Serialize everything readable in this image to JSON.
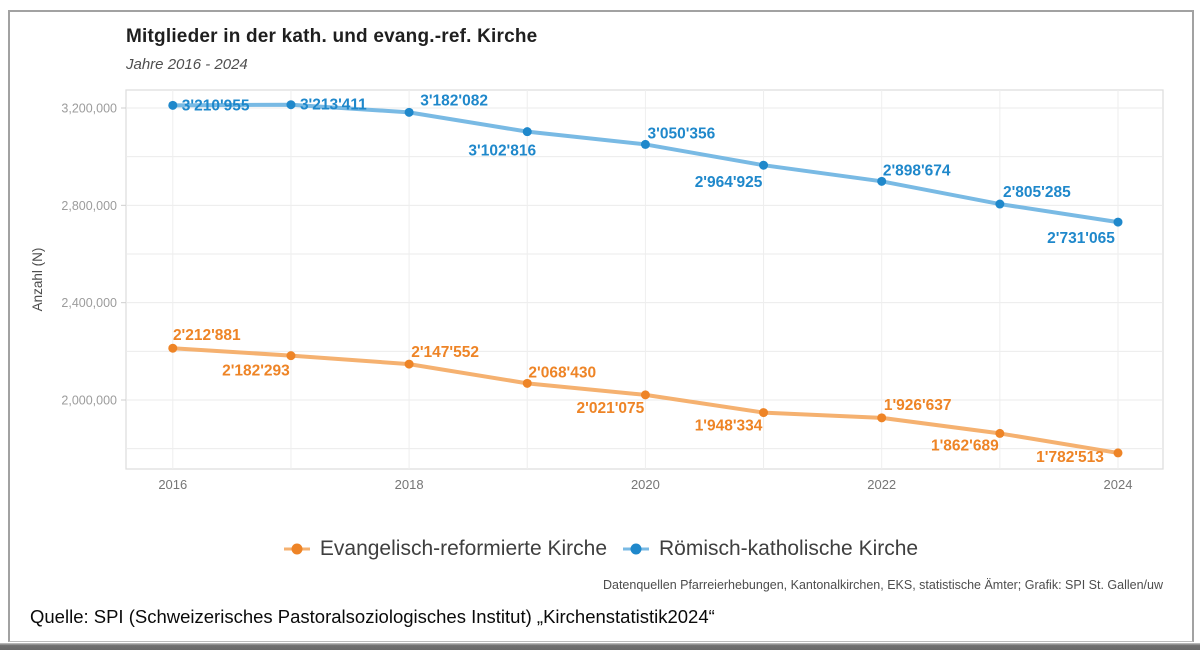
{
  "header": {
    "title": "Mitglieder in der kath. und evang.-ref. Kirche",
    "subtitle": "Jahre 2016 - 2024"
  },
  "chart_data": {
    "type": "line",
    "x": [
      2016,
      2017,
      2018,
      2019,
      2020,
      2021,
      2022,
      2023,
      2024
    ],
    "x_ticks": [
      2016,
      2018,
      2020,
      2022,
      2024
    ],
    "x_tick_labels": [
      "2016",
      "2018",
      "2020",
      "2022",
      "2024"
    ],
    "ylabel": "Anzahl (N)",
    "ylim": [
      1716000,
      3274000
    ],
    "grid": true,
    "legend_position": "bottom-center",
    "y_gridlines": [
      1800000,
      2000000,
      2200000,
      2400000,
      2600000,
      2800000,
      3000000,
      3200000
    ],
    "y_ticks": [
      {
        "value": 2000000,
        "label": "2,000,000"
      },
      {
        "value": 2400000,
        "label": "2,400,000"
      },
      {
        "value": 2800000,
        "label": "2,800,000"
      },
      {
        "value": 3200000,
        "label": "3,200,000"
      }
    ],
    "series": [
      {
        "id": "evangelisch",
        "name": "Evangelisch-reformierte Kirche",
        "color_line": "#f5b170",
        "color_point": "#ee8426",
        "color_label": "#ee8426",
        "values": [
          2212881,
          2182293,
          2147552,
          2068430,
          2021075,
          1948334,
          1926637,
          1862689,
          1782513
        ],
        "labels": [
          "2'212'881",
          "2'182'293",
          "2'147'552",
          "2'068'430",
          "2'021'075",
          "1'948'334",
          "1'926'637",
          "1'862'689",
          "1'782'513"
        ],
        "label_offsets": [
          [
            34,
            -8,
            "m"
          ],
          [
            -35,
            20,
            "m"
          ],
          [
            36,
            -7,
            "m"
          ],
          [
            35,
            -6,
            "m"
          ],
          [
            -35,
            18,
            "m"
          ],
          [
            -35,
            18,
            "m"
          ],
          [
            36,
            -8,
            "m"
          ],
          [
            -35,
            17,
            "m"
          ],
          [
            -48,
            9,
            "m"
          ]
        ]
      },
      {
        "id": "katholisch",
        "name": "Römisch-katholische Kirche",
        "color_line": "#79bae4",
        "color_point": "#1f88cb",
        "color_label": "#1f88cb",
        "values": [
          3210955,
          3213411,
          3182082,
          3102816,
          3050356,
          2964925,
          2898674,
          2805285,
          2731065
        ],
        "labels": [
          "3'210'955",
          "3'213'411",
          "3'182'082",
          "3'102'816",
          "3'050'356",
          "2'964'925",
          "2'898'674",
          "2'805'285",
          "2'731'065"
        ],
        "label_offsets": [
          [
            9,
            5,
            "s"
          ],
          [
            9,
            5,
            "s"
          ],
          [
            45,
            -7,
            "m"
          ],
          [
            -25,
            24,
            "m"
          ],
          [
            36,
            -6,
            "m"
          ],
          [
            -35,
            22,
            "m"
          ],
          [
            35,
            -6,
            "m"
          ],
          [
            37,
            -7,
            "m"
          ],
          [
            -37,
            21,
            "m"
          ]
        ]
      }
    ]
  },
  "footer": {
    "attribution": "Datenquellen Pfarreierhebungen, Kantonalkirchen, EKS, statistische Ämter; Grafik: SPI St. Gallen/uw"
  },
  "source": {
    "text": "Quelle: SPI (Schweizerisches Pastoralsoziologisches Institut) „Kirchenstatistik2024“"
  }
}
